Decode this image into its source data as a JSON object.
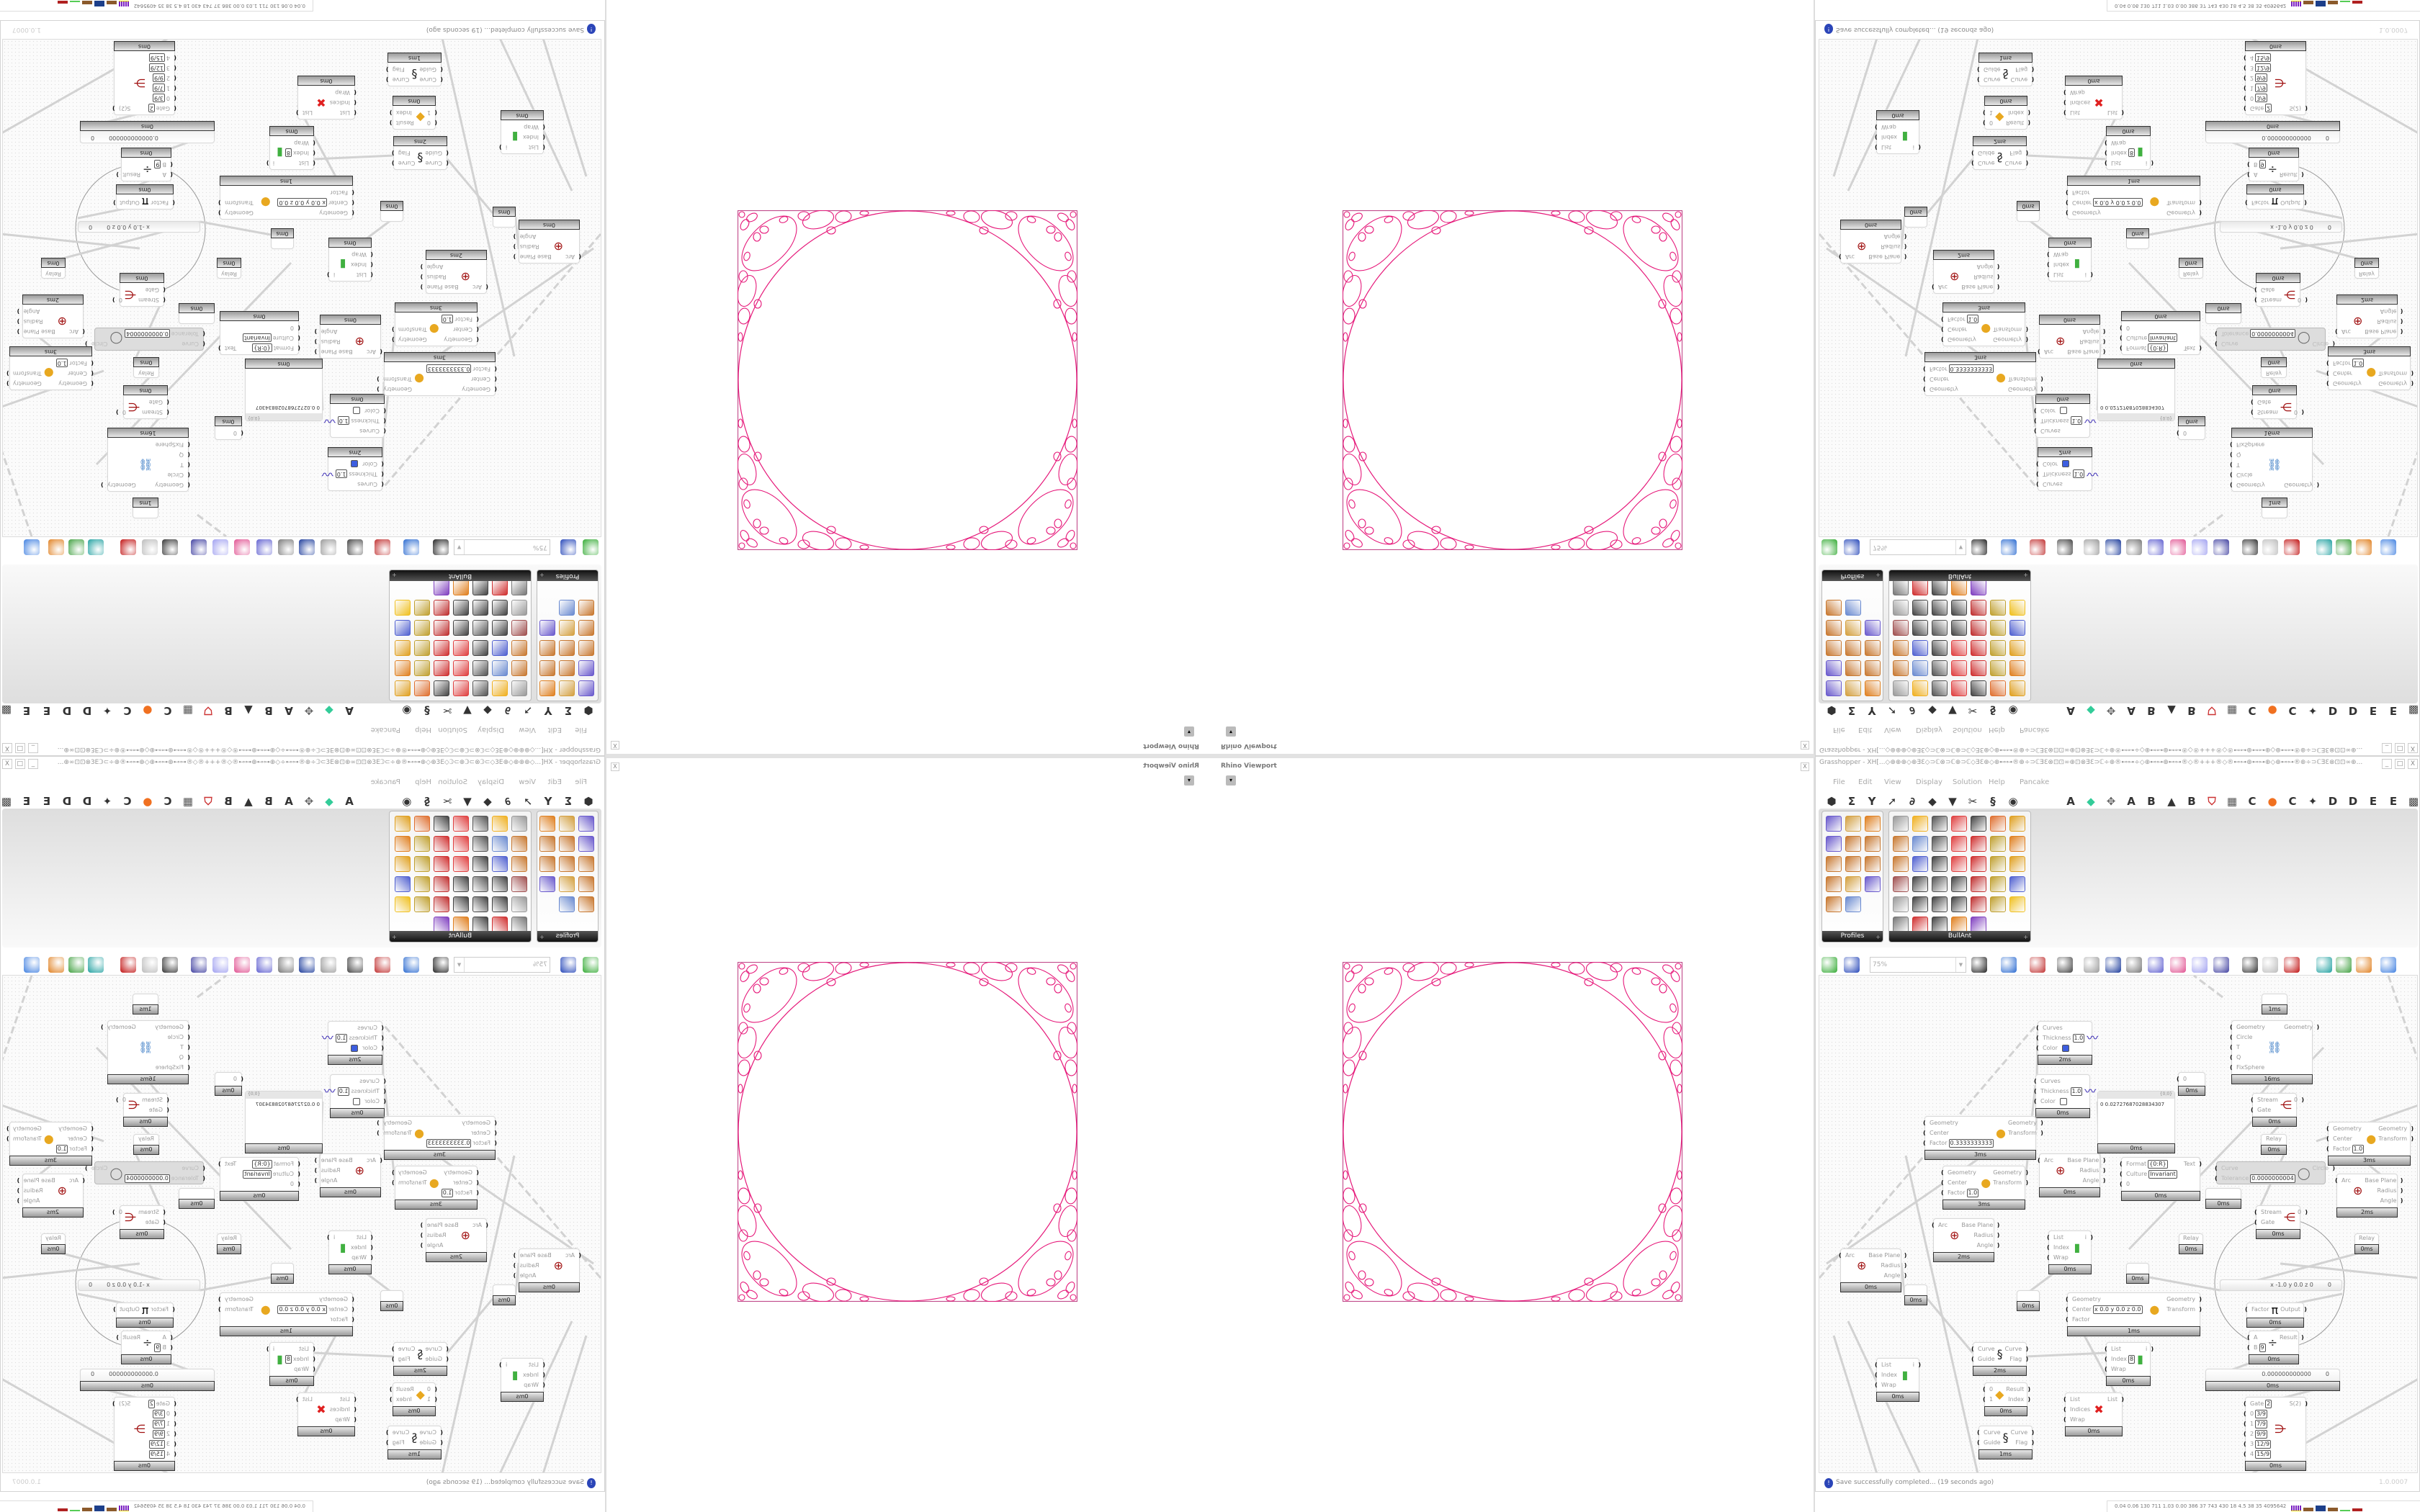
{
  "rhino": {
    "title": "Rhino Viewport",
    "close": "X",
    "dropdown": "▾",
    "stroke_color": "#e6197a"
  },
  "gh": {
    "title": "Grasshopper - XH[...◇⊕⊕⊕◇⊕ƎƐ◇⊃ℂ⊗⊃ℂ⊕⊃ℂ◇ƎƐ⊕◇⊕⊷⊶®⊕÷⊃ℂƎƐ⊗⊡⊡∞⊕⊡⊗ƎƐ⊃ℂ÷⊕®⊷⊶÷◇⊕⊷⊶⊕⊷⊶®◇®+++®◇®⊷⊶⊕⊷⊶⊕◇⊕⊷⊶®⊕÷⊃ℂƎƐ⊗⊡⊡∞⊕...",
    "window_buttons": [
      "_",
      "□",
      "X"
    ],
    "menu": [
      "File",
      "Edit",
      "View",
      "Display",
      "Solution",
      "Help",
      "Pancake"
    ],
    "toolbar_left": [
      "hexagon-icon",
      "sigma-icon",
      "fork-icon",
      "arrow-icon",
      "loop-icon",
      "shape-icon",
      "funnel-icon",
      "scissors-icon",
      "swirl-icon",
      "eye-icon"
    ],
    "toolbar_left_glyphs": [
      "⬢",
      "Σ",
      "Y",
      "➚",
      "∂",
      "◆",
      "▼",
      "✂",
      "§",
      "◉"
    ],
    "toolbar_right": [
      {
        "icon": "letter-a-icon",
        "label": "A"
      },
      {
        "icon": "green-gem-icon",
        "label": "◆"
      },
      {
        "icon": "paw-icon",
        "label": "✥"
      },
      {
        "icon": "letter-a-icon",
        "label": "A"
      },
      {
        "icon": "letter-b-icon",
        "label": "B"
      },
      {
        "icon": "mountain-icon",
        "label": "▲"
      },
      {
        "icon": "letter-b-icon",
        "label": "B"
      },
      {
        "icon": "shield-icon",
        "label": "⛉"
      },
      {
        "icon": "grid-icon",
        "label": "▦"
      },
      {
        "icon": "letter-c-icon",
        "label": "C"
      },
      {
        "icon": "orange-circle-icon",
        "label": "●"
      },
      {
        "icon": "letter-c-icon",
        "label": "C"
      },
      {
        "icon": "bird-icon",
        "label": "✦"
      },
      {
        "icon": "letter-d-icon",
        "label": "D"
      },
      {
        "icon": "letter-d-icon",
        "label": "D"
      },
      {
        "icon": "letter-e-icon",
        "label": "E"
      },
      {
        "icon": "letter-e-icon",
        "label": "E"
      },
      {
        "icon": "dotted-grid-icon",
        "label": "▩"
      }
    ],
    "tabs": [
      {
        "label": "Profiles",
        "icons": [
          "#6a5acd",
          "#d4a040",
          "#e08020",
          "#6a5acd",
          "#c87830",
          "#c87830",
          "#c87830",
          "#c87830",
          "#c87830",
          "#c87830",
          "#d4a040",
          "#6a5acd",
          "#c87830",
          "#6a8ad0"
        ]
      },
      {
        "label": "BullAnt",
        "icons": [
          "#999",
          "#f0b020",
          "#555",
          "#e04040",
          "#444",
          "#e07030",
          "#e0a020",
          "#c87830",
          "#6a8ad0",
          "#555",
          "#e04040",
          "#d03030",
          "#c0a030",
          "#e08020",
          "#c87830",
          "#5060d0",
          "#444",
          "#e04040",
          "#d03030",
          "#c0a030",
          "#e0a020",
          "#a05050",
          "#444",
          "#555",
          "#444",
          "#c03030",
          "#c0a030",
          "#5060d0",
          "#999",
          "#444",
          "#444",
          "#444",
          "#c03030",
          "#c0a030",
          "#f0c020",
          "#777",
          "#d03030",
          "#444",
          "#e08020",
          "#8040c0"
        ]
      }
    ],
    "canvas_toolbar": {
      "zoom": "75%",
      "icons": [
        {
          "icon": "new-file-icon",
          "color": "#3a3"
        },
        {
          "icon": "save-icon",
          "color": "#2546b8"
        },
        {
          "icon": "zoom-extents-icon",
          "color": "#222"
        },
        {
          "icon": "preview-eye-icon",
          "color": "#2a6ad0"
        },
        {
          "icon": "sketch-icon",
          "color": "#c03030"
        },
        {
          "icon": "bug-icon",
          "color": "#444"
        },
        {
          "icon": "at-icon",
          "color": "#999"
        },
        {
          "icon": "gha-icon",
          "color": "#1a3a9a"
        },
        {
          "icon": "canvas-image-icon",
          "color": "#777"
        },
        {
          "icon": "search-s-icon",
          "color": "#6060d0"
        },
        {
          "icon": "package-icon",
          "color": "#e05090"
        },
        {
          "icon": "bulb-icon",
          "color": "#a0a0f0"
        },
        {
          "icon": "wires-icon",
          "color": "#4040a0"
        },
        {
          "icon": "preview-shaded-icon",
          "color": "#333"
        },
        {
          "icon": "wireframe-icon",
          "color": "#bbb"
        },
        {
          "icon": "red-box-icon",
          "color": "#c01010"
        },
        {
          "icon": "teal-shape-icon",
          "color": "#20a0a0"
        },
        {
          "icon": "green-shape-icon",
          "color": "#40a040"
        },
        {
          "icon": "half-sphere-icon",
          "color": "#e08020"
        },
        {
          "icon": "blue-sphere-icon",
          "color": "#4080e0"
        }
      ]
    },
    "status": {
      "message": "Save successfully completed... (19 seconds ago)",
      "version": "1.0.0007",
      "icon": "info-icon"
    },
    "perf": "0.04  0.06  130  711  1.03  0.00  386  37  743  430  18  4.5  38  35  4095642"
  },
  "canvas": {
    "nodes": [
      {
        "inputs": [
          {
            "l": "Curves"
          },
          {
            "l": "Thickness",
            "v": "1.0"
          },
          {
            "l": "Color",
            "sw": "#3d5ee0"
          }
        ],
        "outputs": [],
        "icon": "custom-preview-icon",
        "time": "2ms"
      },
      {
        "inputs": [
          {
            "l": "Curves"
          },
          {
            "l": "Thickness",
            "v": "1.0"
          },
          {
            "l": "Color",
            "sw": "#ffffff"
          }
        ],
        "outputs": [],
        "icon": "custom-preview-icon",
        "time": "0ms"
      },
      {
        "inputs": [
          {
            "l": "Geometry"
          },
          {
            "l": "Center"
          },
          {
            "l": "Factor",
            "v": "0.3333333333"
          }
        ],
        "outputs": [
          {
            "l": "Geometry"
          },
          {
            "l": "Transform"
          }
        ],
        "icon": "scale-icon",
        "time": "3ms"
      },
      {
        "inputs": [
          {
            "l": "Geometry"
          },
          {
            "l": "Center"
          },
          {
            "l": "Factor",
            "v": "1.0"
          }
        ],
        "outputs": [
          {
            "l": "Geometry"
          },
          {
            "l": "Transform"
          }
        ],
        "icon": "scale-icon",
        "time": "3ms"
      },
      {
        "inputs": [
          {
            "l": "Arc"
          }
        ],
        "outputs": [
          {
            "l": "Base Plane"
          },
          {
            "l": "Radius"
          },
          {
            "l": "Angle"
          }
        ],
        "icon": "arc-icon",
        "time": "0ms"
      },
      {
        "inputs": [
          {
            "l": "Arc"
          }
        ],
        "outputs": [
          {
            "l": "Base Plane"
          },
          {
            "l": "Radius"
          },
          {
            "l": "Angle"
          }
        ],
        "icon": "arc-icon",
        "time": "2ms"
      },
      {
        "kind": "panel",
        "header": "{0;0}",
        "text": "0  0.02727687028834307",
        "time": "0ms"
      },
      {
        "inputs": [
          {
            "l": "Format",
            "v": "{0:R}"
          },
          {
            "l": "Culture",
            "v": "Invariant"
          },
          {
            "l": "0"
          }
        ],
        "outputs": [
          {
            "l": "Text"
          }
        ],
        "icon": "format-icon",
        "time": "0ms"
      },
      {
        "inputs": [
          {
            "l": "0"
          }
        ],
        "outputs": [],
        "icon": "",
        "time": "0ms"
      },
      {
        "inputs": [
          {
            "l": "Geometry"
          },
          {
            "l": "Circle"
          },
          {
            "l": "T"
          },
          {
            "l": "Q"
          },
          {
            "l": "FixSphere"
          }
        ],
        "outputs": [
          {
            "l": "Geometry"
          }
        ],
        "icon": "kangaroo-icon",
        "time": "16ms"
      },
      {
        "inputs": [],
        "outputs": [],
        "icon": "",
        "time": "1ms"
      },
      {
        "inputs": [
          {
            "l": "Stream"
          },
          {
            "l": "Gate"
          }
        ],
        "outputs": [
          {
            "l": "0"
          }
        ],
        "icon": "stream-gate-icon",
        "time": "0ms"
      },
      {
        "kind": "relay",
        "label": "Relay",
        "time": "0ms"
      },
      {
        "kind": "disabled",
        "inputs": [
          {
            "l": "Curve"
          },
          {
            "l": "Tolerance",
            "v": "0.0000000004"
          }
        ],
        "outputs": [
          {
            "l": "Circle"
          }
        ],
        "icon": "fit-circle-icon"
      },
      {
        "inputs": [
          {
            "l": "Stream"
          },
          {
            "l": "Gate"
          }
        ],
        "outputs": [
          {
            "l": "0"
          }
        ],
        "icon": "stream-gate-icon",
        "time": "0ms"
      },
      {
        "inputs": [
          {
            "l": "Geometry"
          },
          {
            "l": "Center"
          },
          {
            "l": "Factor",
            "v": "1.0"
          }
        ],
        "outputs": [
          {
            "l": "Geometry"
          },
          {
            "l": "Transform"
          }
        ],
        "icon": "scale-icon",
        "time": "3ms"
      },
      {
        "inputs": [
          {
            "l": "Arc"
          }
        ],
        "outputs": [
          {
            "l": "Base Plane"
          },
          {
            "l": "Radius"
          },
          {
            "l": "Angle"
          }
        ],
        "icon": "arc-icon",
        "time": "2ms"
      },
      {
        "inputs": [
          {
            "l": "Arc"
          }
        ],
        "outputs": [
          {
            "l": "Base Plane"
          },
          {
            "l": "Radius"
          },
          {
            "l": "Angle"
          }
        ],
        "icon": "arc-icon",
        "time": "0ms"
      },
      {
        "kind": "relay",
        "label": "",
        "time": "0ms"
      },
      {
        "inputs": [
          {
            "l": "List"
          },
          {
            "l": "Index"
          },
          {
            "l": "Wrap"
          }
        ],
        "outputs": [
          {
            "l": "i"
          }
        ],
        "icon": "list-item-icon",
        "time": "0ms"
      },
      {
        "inputs": [
          {
            "l": "Curve"
          },
          {
            "l": "Guide"
          }
        ],
        "outputs": [
          {
            "l": "Curve"
          },
          {
            "l": "Flag"
          }
        ],
        "icon": "flip-curve-icon",
        "time": "2ms"
      },
      {
        "inputs": [
          {
            "l": "0"
          },
          {
            "l": "1"
          }
        ],
        "outputs": [
          {
            "l": "Result"
          },
          {
            "l": "Index"
          }
        ],
        "icon": "pick-icon",
        "time": "0ms"
      },
      {
        "inputs": [
          {
            "l": "Curve"
          },
          {
            "l": "Guide"
          }
        ],
        "outputs": [
          {
            "l": "Curve"
          },
          {
            "l": "Flag"
          }
        ],
        "icon": "flip-curve-icon",
        "time": "1ms"
      },
      {
        "inputs": [
          {
            "l": "List"
          },
          {
            "l": "Index"
          },
          {
            "l": "Wrap"
          }
        ],
        "outputs": [
          {
            "l": "i"
          }
        ],
        "icon": "list-item-icon",
        "time": "0ms"
      },
      {
        "kind": "relay",
        "label": "",
        "time": "0ms"
      },
      {
        "inputs": [
          {
            "l": "Geometry"
          },
          {
            "l": "Center",
            "v": "x 0.0 y 0.0 z 0.0"
          },
          {
            "l": "Factor"
          }
        ],
        "outputs": [
          {
            "l": "Geometry"
          },
          {
            "l": "Transform"
          }
        ],
        "icon": "scale-icon",
        "time": "1ms"
      },
      {
        "inputs": [
          {
            "l": "List"
          },
          {
            "l": "Indices"
          },
          {
            "l": "Wrap"
          }
        ],
        "outputs": [
          {
            "l": "List"
          }
        ],
        "icon": "cull-index-icon",
        "time": "0ms"
      },
      {
        "inputs": [
          {
            "l": "List"
          },
          {
            "l": "Index",
            "v": "8"
          },
          {
            "l": "Wrap"
          }
        ],
        "outputs": [
          {
            "l": "i"
          }
        ],
        "icon": "list-item-icon",
        "time": "0ms"
      },
      {
        "kind": "relay",
        "label": "Relay",
        "time": "0ms"
      },
      {
        "kind": "relay",
        "label": "Relay",
        "time": "0ms"
      },
      {
        "kind": "relay",
        "label": "",
        "time": "0ms"
      },
      {
        "inputs": [],
        "outputs": [],
        "icon": "",
        "time": "0ms"
      },
      {
        "kind": "slider",
        "text": "x -1.0  y 0.0  z 0",
        "end": "0"
      },
      {
        "inputs": [
          {
            "l": "Factor"
          }
        ],
        "outputs": [
          {
            "l": "Output"
          }
        ],
        "icon": "pi-icon",
        "time": "0ms"
      },
      {
        "inputs": [
          {
            "l": "A"
          },
          {
            "l": "B",
            "v": "9"
          }
        ],
        "outputs": [
          {
            "l": "Result"
          }
        ],
        "icon": "division-icon",
        "time": "0ms"
      },
      {
        "kind": "slider",
        "text": "0.000000000000",
        "end": "0",
        "time": "0ms"
      },
      {
        "inputs": [
          {
            "l": "Gate",
            "v": "2"
          },
          {
            "l": "0",
            "v": "3/9"
          },
          {
            "l": "1",
            "v": "7/9"
          },
          {
            "l": "2",
            "v": "9/9"
          },
          {
            "l": "3",
            "v": "12/9"
          },
          {
            "l": "4",
            "v": "15/9"
          }
        ],
        "outputs": [
          {
            "l": "S(2)"
          }
        ],
        "icon": "stream-filter-icon",
        "time": "0ms"
      }
    ]
  }
}
